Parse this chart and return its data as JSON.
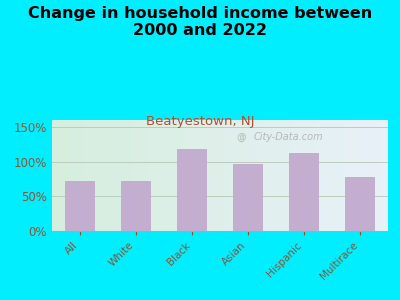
{
  "title": "Change in household income between\n2000 and 2022",
  "subtitle": "Beatyestown, NJ",
  "categories": [
    "All",
    "White",
    "Black",
    "Asian",
    "Hispanic",
    "Multirace"
  ],
  "values": [
    72,
    72,
    118,
    97,
    112,
    78
  ],
  "bar_color": "#c4aed0",
  "background_outer": "#00eeff",
  "background_inner": "#e8f5e2",
  "title_fontsize": 11.5,
  "subtitle_fontsize": 9.5,
  "subtitle_color": "#b05030",
  "tick_label_color": "#885533",
  "ylim": [
    0,
    160
  ],
  "yticks": [
    0,
    50,
    100,
    150
  ],
  "watermark": "City-Data.com",
  "grid_color": "#ccddcc",
  "hline_color": "#bbccbb"
}
